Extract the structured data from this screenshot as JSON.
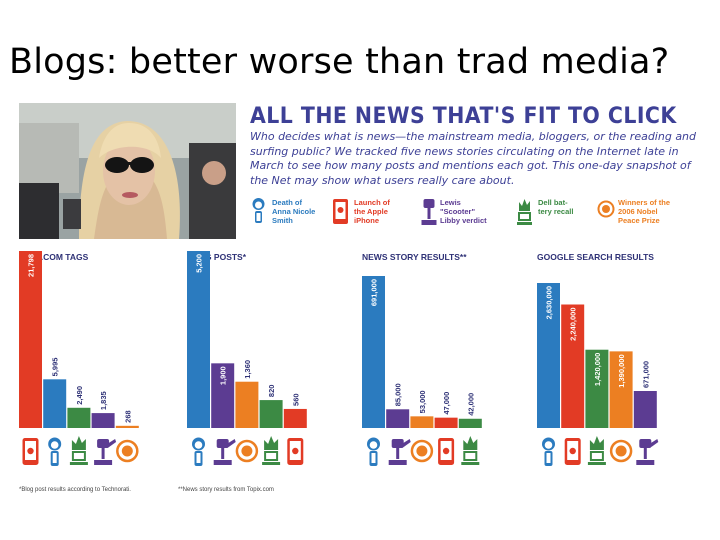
{
  "slide": {
    "title": "Blogs: better worse than trad media?"
  },
  "infographic": {
    "headline": "ALL THE NEWS THAT'S FIT TO CLICK",
    "intro": "Who decides what is news—the mainstream media, bloggers, or the reading and surfing public? We tracked five news stories circulating on the Internet late in March to see how many posts and mentions each got. This one-day snapshot of the Net may show what users really care about.",
    "legend": [
      {
        "label": "Death of\nAnna Nicole\nSmith",
        "color": "#2b7bbf",
        "icon": "anna-nicole-icon"
      },
      {
        "label": "Launch of\nthe Apple\niPhone",
        "color": "#e23b25",
        "icon": "iphone-icon"
      },
      {
        "label": "Lewis\n\"Scooter\"\nLibby verdict",
        "color": "#5c3c92",
        "icon": "gavel-icon"
      },
      {
        "label": "Dell bat-\ntery recall",
        "color": "#3c8a44",
        "icon": "burning-laptop-icon"
      },
      {
        "label": "Winners of the\n2006 Nobel\nPeace Prize",
        "color": "#ec7f22",
        "icon": "nobel-laurel-icon"
      }
    ],
    "footnotes": [
      "*Blog post results according to Technorati.",
      "**News story results from Topix.com"
    ]
  },
  "chart_data": [
    {
      "type": "bar",
      "title": "DIGG.COM TAGS",
      "categories": [
        "Launch of the Apple iPhone",
        "Death of Anna Nicole Smith",
        "Dell battery recall",
        "Lewis \"Scooter\" Libby verdict",
        "Winners of the 2006 Nobel Peace Prize"
      ],
      "values": [
        21798,
        5995,
        2490,
        1835,
        268
      ],
      "labels": [
        "21,798",
        "5,995",
        "2,490",
        "1,835",
        "268"
      ],
      "colors": [
        "#e23b25",
        "#2b7bbf",
        "#3c8a44",
        "#5c3c92",
        "#ec7f22"
      ],
      "icons": [
        "iphone-icon",
        "anna-nicole-icon",
        "burning-laptop-icon",
        "gavel-icon",
        "nobel-laurel-icon"
      ]
    },
    {
      "type": "bar",
      "title": "BLOG POSTS*",
      "categories": [
        "Death of Anna Nicole Smith",
        "Lewis \"Scooter\" Libby verdict",
        "Winners of the 2006 Nobel Peace Prize",
        "Dell battery recall",
        "Launch of the Apple iPhone"
      ],
      "values": [
        5200,
        1900,
        1360,
        820,
        560
      ],
      "labels": [
        "5,200",
        "1,900",
        "1,360",
        "820",
        "560"
      ],
      "colors": [
        "#2b7bbf",
        "#5c3c92",
        "#ec7f22",
        "#3c8a44",
        "#e23b25"
      ],
      "icons": [
        "anna-nicole-icon",
        "gavel-icon",
        "nobel-laurel-icon",
        "burning-laptop-icon",
        "iphone-icon"
      ]
    },
    {
      "type": "bar",
      "title": "NEWS STORY RESULTS**",
      "categories": [
        "Death of Anna Nicole Smith",
        "Lewis \"Scooter\" Libby verdict",
        "Winners of the 2006 Nobel Peace Prize",
        "Launch of the Apple iPhone",
        "Dell battery recall"
      ],
      "values": [
        691000,
        85000,
        53000,
        47000,
        42000
      ],
      "labels": [
        "691,000",
        "85,000",
        "53,000",
        "47,000",
        "42,000"
      ],
      "colors": [
        "#2b7bbf",
        "#5c3c92",
        "#ec7f22",
        "#e23b25",
        "#3c8a44"
      ],
      "icons": [
        "anna-nicole-icon",
        "gavel-icon",
        "nobel-laurel-icon",
        "iphone-icon",
        "burning-laptop-icon"
      ]
    },
    {
      "type": "bar",
      "title": "GOOGLE SEARCH RESULTS",
      "categories": [
        "Death of Anna Nicole Smith",
        "Launch of the Apple iPhone",
        "Dell battery recall",
        "Winners of the 2006 Nobel Peace Prize",
        "Lewis \"Scooter\" Libby verdict"
      ],
      "values": [
        2630000,
        2240000,
        1420000,
        1390000,
        671000
      ],
      "labels": [
        "2,630,000",
        "2,240,000",
        "1,420,000",
        "1,390,000",
        "671,000"
      ],
      "colors": [
        "#2b7bbf",
        "#e23b25",
        "#3c8a44",
        "#ec7f22",
        "#5c3c92"
      ],
      "icons": [
        "anna-nicole-icon",
        "iphone-icon",
        "burning-laptop-icon",
        "nobel-laurel-icon",
        "gavel-icon"
      ]
    }
  ]
}
